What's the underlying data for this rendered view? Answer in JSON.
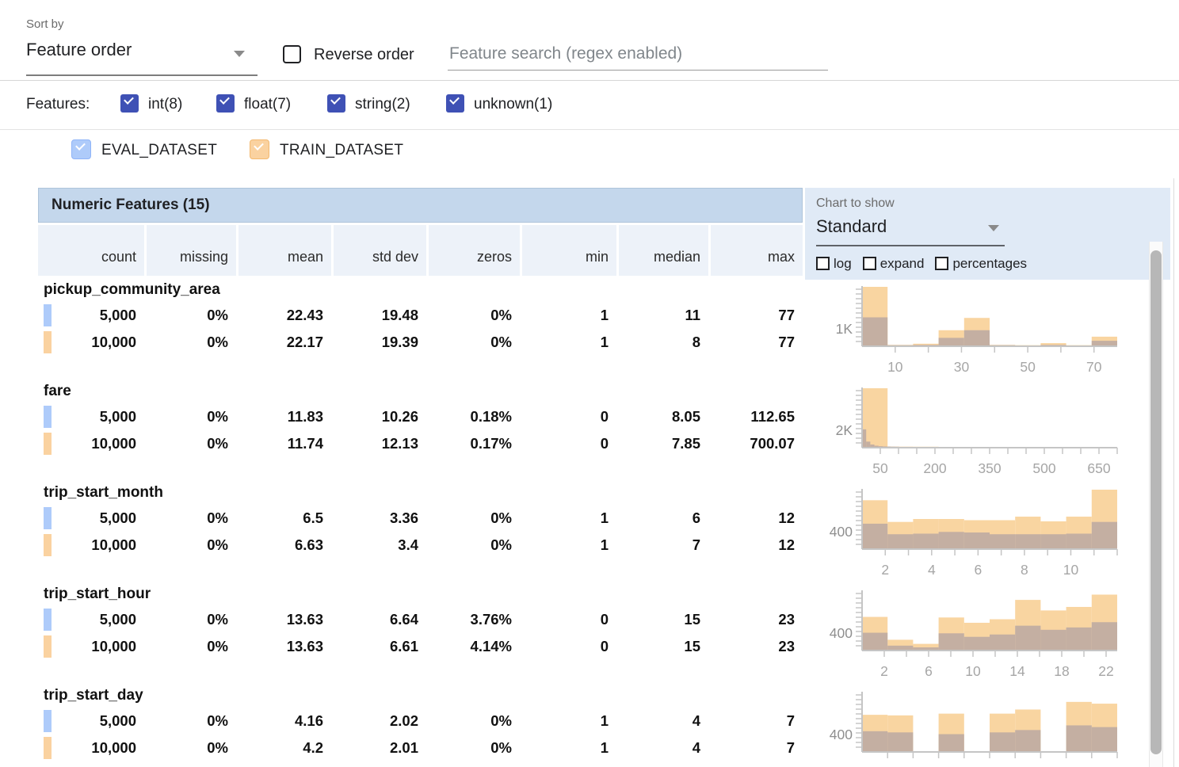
{
  "controls": {
    "sort_by_label": "Sort by",
    "sort_by_value": "Feature order",
    "reverse_order_label": "Reverse order",
    "search_placeholder": "Feature search (regex enabled)"
  },
  "filters": {
    "label": "Features:",
    "accent_color": "#3f51b5",
    "items": [
      {
        "label": "int(8)",
        "checked": true
      },
      {
        "label": "float(7)",
        "checked": true
      },
      {
        "label": "string(2)",
        "checked": true
      },
      {
        "label": "unknown(1)",
        "checked": true
      }
    ]
  },
  "datasets": [
    {
      "name": "EVAL_DATASET",
      "color": "#aecbfa",
      "border": "#8fb4f8",
      "checked": true
    },
    {
      "name": "TRAIN_DATASET",
      "color": "#fad2a0",
      "border": "#f3b96f",
      "checked": true
    }
  ],
  "table": {
    "title": "Numeric Features (15)",
    "columns": [
      "count",
      "missing",
      "mean",
      "std dev",
      "zeros",
      "min",
      "median",
      "max"
    ],
    "features": [
      {
        "name": "pickup_community_area",
        "rows": [
          {
            "dataset": "EVAL_DATASET",
            "values": [
              "5,000",
              "0%",
              "22.43",
              "19.48",
              "0%",
              "1",
              "11",
              "77"
            ]
          },
          {
            "dataset": "TRAIN_DATASET",
            "values": [
              "10,000",
              "0%",
              "22.17",
              "19.39",
              "0%",
              "1",
              "8",
              "77"
            ]
          }
        ]
      },
      {
        "name": "fare",
        "rows": [
          {
            "dataset": "EVAL_DATASET",
            "values": [
              "5,000",
              "0%",
              "11.83",
              "10.26",
              "0.18%",
              "0",
              "8.05",
              "112.65"
            ]
          },
          {
            "dataset": "TRAIN_DATASET",
            "values": [
              "10,000",
              "0%",
              "11.74",
              "12.13",
              "0.17%",
              "0",
              "7.85",
              "700.07"
            ]
          }
        ]
      },
      {
        "name": "trip_start_month",
        "rows": [
          {
            "dataset": "EVAL_DATASET",
            "values": [
              "5,000",
              "0%",
              "6.5",
              "3.36",
              "0%",
              "1",
              "6",
              "12"
            ]
          },
          {
            "dataset": "TRAIN_DATASET",
            "values": [
              "10,000",
              "0%",
              "6.63",
              "3.4",
              "0%",
              "1",
              "7",
              "12"
            ]
          }
        ]
      },
      {
        "name": "trip_start_hour",
        "rows": [
          {
            "dataset": "EVAL_DATASET",
            "values": [
              "5,000",
              "0%",
              "13.63",
              "6.64",
              "3.76%",
              "0",
              "15",
              "23"
            ]
          },
          {
            "dataset": "TRAIN_DATASET",
            "values": [
              "10,000",
              "0%",
              "13.63",
              "6.61",
              "4.14%",
              "0",
              "15",
              "23"
            ]
          }
        ]
      },
      {
        "name": "trip_start_day",
        "rows": [
          {
            "dataset": "EVAL_DATASET",
            "values": [
              "5,000",
              "0%",
              "4.16",
              "2.02",
              "0%",
              "1",
              "4",
              "7"
            ]
          },
          {
            "dataset": "TRAIN_DATASET",
            "values": [
              "10,000",
              "0%",
              "4.2",
              "2.01",
              "0%",
              "1",
              "4",
              "7"
            ]
          }
        ]
      }
    ]
  },
  "chart_panel": {
    "label": "Chart to show",
    "selected": "Standard",
    "options": [
      "log",
      "expand",
      "percentages"
    ]
  },
  "chart_colors": {
    "train_bar": "#f9d5a1",
    "overlap_bar": "#c4afa2",
    "axis": "#c5c5c5",
    "tick_label": "#a6a6a6",
    "y_label": "#8f8f8f"
  },
  "chart_data": [
    {
      "feature": "pickup_community_area",
      "type": "histogram",
      "y_axis_label": "1K",
      "x_range": [
        0,
        77
      ],
      "x_tick_step": 10,
      "x_labeled_ticks": [
        10,
        30,
        50,
        70
      ],
      "series": [
        {
          "name": "TRAIN_DATASET",
          "bin_range": [
            0,
            77
          ],
          "heights_rel": [
            1.0,
            0.01,
            0.03,
            0.26,
            0.47,
            0.01,
            0.005,
            0.04,
            0.005,
            0.15
          ]
        },
        {
          "name": "EVAL_DATASET",
          "bin_range": [
            0,
            77
          ],
          "heights_rel": [
            0.48,
            0.005,
            0.01,
            0.13,
            0.26,
            0.005,
            0.0,
            0.01,
            0.0,
            0.08
          ]
        }
      ]
    },
    {
      "feature": "fare",
      "type": "histogram",
      "y_axis_label": "2K",
      "x_range": [
        0,
        700
      ],
      "x_tick_step": 50,
      "x_labeled_ticks": [
        50,
        200,
        350,
        500,
        650
      ],
      "series": [
        {
          "name": "TRAIN_DATASET",
          "bin_range": [
            0,
            700
          ],
          "heights_rel": [
            1.0,
            0.004,
            0.003,
            0.002,
            0.002,
            0.001,
            0.001,
            0.001,
            0.001,
            0.001
          ]
        },
        {
          "name": "EVAL_DATASET",
          "bin_range": [
            0,
            113
          ],
          "heights_rel": [
            0.3,
            0.09,
            0.04,
            0.02,
            0.012,
            0.008,
            0.006,
            0.004,
            0.003,
            0.002
          ]
        }
      ]
    },
    {
      "feature": "trip_start_month",
      "type": "histogram",
      "y_axis_label": "400",
      "x_range": [
        1,
        12
      ],
      "x_tick_step": 1,
      "x_labeled_ticks": [
        2,
        4,
        6,
        8,
        10
      ],
      "series": [
        {
          "name": "TRAIN_DATASET",
          "bin_range": [
            1,
            12
          ],
          "heights_rel": [
            0.82,
            0.45,
            0.5,
            0.5,
            0.48,
            0.48,
            0.54,
            0.46,
            0.54,
            1.0
          ]
        },
        {
          "name": "EVAL_DATASET",
          "bin_range": [
            1,
            12
          ],
          "heights_rel": [
            0.42,
            0.24,
            0.25,
            0.28,
            0.27,
            0.24,
            0.24,
            0.24,
            0.25,
            0.45
          ]
        }
      ]
    },
    {
      "feature": "trip_start_hour",
      "type": "histogram",
      "y_axis_label": "400",
      "x_range": [
        0,
        23
      ],
      "x_tick_step": 2,
      "x_labeled_ticks": [
        2,
        6,
        10,
        14,
        18,
        22
      ],
      "series": [
        {
          "name": "TRAIN_DATASET",
          "bin_range": [
            0,
            23
          ],
          "heights_rel": [
            0.56,
            0.17,
            0.1,
            0.55,
            0.46,
            0.52,
            0.85,
            0.67,
            0.73,
            0.94
          ]
        },
        {
          "name": "EVAL_DATASET",
          "bin_range": [
            0,
            23
          ],
          "heights_rel": [
            0.29,
            0.07,
            0.04,
            0.28,
            0.22,
            0.26,
            0.41,
            0.34,
            0.38,
            0.47
          ]
        }
      ]
    },
    {
      "feature": "trip_start_day",
      "type": "histogram",
      "y_axis_label": "400",
      "x_range": [
        1,
        7
      ],
      "x_tick_step": 0.6,
      "x_labeled_ticks": [],
      "series": [
        {
          "name": "TRAIN_DATASET",
          "bin_range": [
            1,
            7
          ],
          "heights_rel": [
            0.62,
            0.61,
            0.0,
            0.64,
            0.0,
            0.64,
            0.71,
            0.0,
            0.84,
            0.81
          ]
        },
        {
          "name": "EVAL_DATASET",
          "bin_range": [
            1,
            7
          ],
          "heights_rel": [
            0.34,
            0.32,
            0.0,
            0.29,
            0.0,
            0.32,
            0.36,
            0.0,
            0.44,
            0.41
          ]
        }
      ]
    }
  ]
}
